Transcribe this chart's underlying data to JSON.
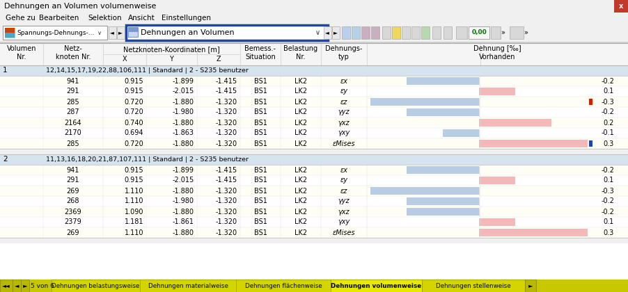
{
  "title": "Dehnungen an Volumen volumenweise",
  "menu_items": [
    "Gehe zu",
    "Bearbeiten",
    "Selektion",
    "Ansicht",
    "Einstellungen"
  ],
  "toolbar_dropdown_text": "Dehnungen an Volumen",
  "groups": [
    {
      "volumen_nr": "1",
      "info": "12,14,15,17,19,22,88,106,111 | Standard | 2 - S235 benutzer",
      "rows": [
        {
          "knoten": "941",
          "x": "0.915",
          "y": "-1.899",
          "z": "-1.415",
          "bs": "BS1",
          "lk": "LK2",
          "typ": "εx",
          "val": "-0.2",
          "bar_color": "#b8cce4",
          "bar_side": "left",
          "flag": ""
        },
        {
          "knoten": "291",
          "x": "0.915",
          "y": "-2.015",
          "z": "-1.415",
          "bs": "BS1",
          "lk": "LK2",
          "typ": "εy",
          "val": "0.1",
          "bar_color": "#f4b8b8",
          "bar_side": "right",
          "flag": ""
        },
        {
          "knoten": "285",
          "x": "0.720",
          "y": "-1.880",
          "z": "-1.320",
          "bs": "BS1",
          "lk": "LK2",
          "typ": "εz",
          "val": "-0.3",
          "bar_color": "#b8cce4",
          "bar_side": "left",
          "flag": "red"
        },
        {
          "knoten": "287",
          "x": "0.720",
          "y": "-1.980",
          "z": "-1.320",
          "bs": "BS1",
          "lk": "LK2",
          "typ": "γyz",
          "val": "-0.2",
          "bar_color": "#b8cce4",
          "bar_side": "left",
          "flag": ""
        },
        {
          "knoten": "2164",
          "x": "0.740",
          "y": "-1.880",
          "z": "-1.320",
          "bs": "BS1",
          "lk": "LK2",
          "typ": "γxz",
          "val": "0.2",
          "bar_color": "#f4b8b8",
          "bar_side": "right",
          "flag": ""
        },
        {
          "knoten": "2170",
          "x": "0.694",
          "y": "-1.863",
          "z": "-1.320",
          "bs": "BS1",
          "lk": "LK2",
          "typ": "γxy",
          "val": "-0.1",
          "bar_color": "#b8cce4",
          "bar_side": "left",
          "flag": ""
        },
        {
          "knoten": "285",
          "x": "0.720",
          "y": "-1.880",
          "z": "-1.320",
          "bs": "BS1",
          "lk": "LK2",
          "typ": "εMises",
          "val": "0.3",
          "bar_color": "#f4b8b8",
          "bar_side": "right",
          "flag": "blue"
        }
      ]
    },
    {
      "volumen_nr": "2",
      "info": "11,13,16,18,20,21,87,107,111 | Standard | 2 - S235 benutzer",
      "rows": [
        {
          "knoten": "941",
          "x": "0.915",
          "y": "-1.899",
          "z": "-1.415",
          "bs": "BS1",
          "lk": "LK2",
          "typ": "εx",
          "val": "-0.2",
          "bar_color": "#b8cce4",
          "bar_side": "left",
          "flag": ""
        },
        {
          "knoten": "291",
          "x": "0.915",
          "y": "-2.015",
          "z": "-1.415",
          "bs": "BS1",
          "lk": "LK2",
          "typ": "εy",
          "val": "0.1",
          "bar_color": "#f4b8b8",
          "bar_side": "right",
          "flag": ""
        },
        {
          "knoten": "269",
          "x": "1.110",
          "y": "-1.880",
          "z": "-1.320",
          "bs": "BS1",
          "lk": "LK2",
          "typ": "εz",
          "val": "-0.3",
          "bar_color": "#b8cce4",
          "bar_side": "left",
          "flag": ""
        },
        {
          "knoten": "268",
          "x": "1.110",
          "y": "-1.980",
          "z": "-1.320",
          "bs": "BS1",
          "lk": "LK2",
          "typ": "γyz",
          "val": "-0.2",
          "bar_color": "#b8cce4",
          "bar_side": "left",
          "flag": ""
        },
        {
          "knoten": "2369",
          "x": "1.090",
          "y": "-1.880",
          "z": "-1.320",
          "bs": "BS1",
          "lk": "LK2",
          "typ": "γxz",
          "val": "-0.2",
          "bar_color": "#b8cce4",
          "bar_side": "left",
          "flag": ""
        },
        {
          "knoten": "2379",
          "x": "1.181",
          "y": "-1.861",
          "z": "-1.320",
          "bs": "BS1",
          "lk": "LK2",
          "typ": "γxy",
          "val": "0.1",
          "bar_color": "#f4b8b8",
          "bar_side": "right",
          "flag": ""
        },
        {
          "knoten": "269",
          "x": "1.110",
          "y": "-1.880",
          "z": "-1.320",
          "bs": "BS1",
          "lk": "LK2",
          "typ": "εMises",
          "val": "0.3",
          "bar_color": "#f4b8b8",
          "bar_side": "right",
          "flag": ""
        }
      ]
    }
  ],
  "tab_labels": [
    "Dehnungen belastungsweise",
    "Dehnungen materialweise",
    "Dehnungen flächenweise",
    "Dehnungen volumenweise",
    "Dehnungen stellenweise"
  ],
  "tab_active_idx": 3,
  "nav_text": "5 von 6"
}
